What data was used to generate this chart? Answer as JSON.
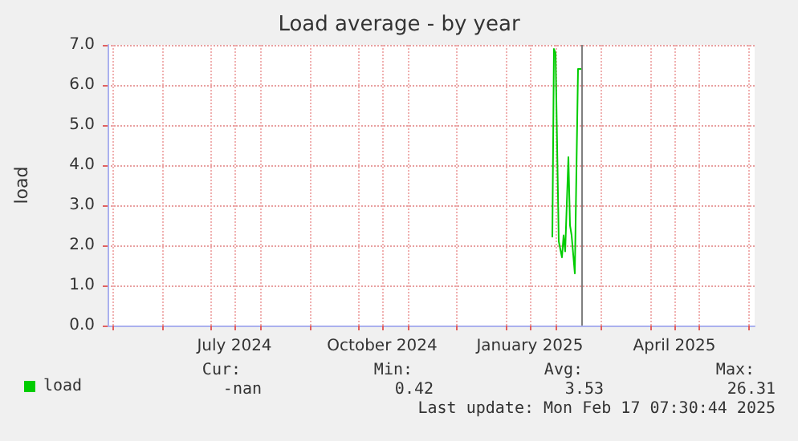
{
  "chart_data": {
    "type": "line",
    "title": "Load average - by year",
    "ylabel": "load",
    "x": [
      "2025-01-30",
      "2025-01-31",
      "2025-02-01",
      "2025-02-03",
      "2025-02-05",
      "2025-02-06",
      "2025-02-07",
      "2025-02-09",
      "2025-02-10",
      "2025-02-11",
      "2025-02-13",
      "2025-02-15",
      "2025-02-17"
    ],
    "series": [
      {
        "name": "load",
        "color": "#00cc00",
        "values": [
          2.2,
          6.9,
          6.8,
          2.1,
          1.7,
          2.25,
          1.85,
          4.2,
          2.5,
          2.25,
          1.3,
          6.4,
          6.4
        ]
      }
    ],
    "xlim": [
      "2024-04-28",
      "2025-06-05"
    ],
    "xticks": [
      {
        "value": "2024-05-01",
        "label": null
      },
      {
        "value": "2024-06-01",
        "label": null
      },
      {
        "value": "2024-07-01",
        "label": null
      },
      {
        "value": "2024-07-16",
        "label": "July 2024"
      },
      {
        "value": "2024-08-01",
        "label": null
      },
      {
        "value": "2024-09-01",
        "label": null
      },
      {
        "value": "2024-10-01",
        "label": null
      },
      {
        "value": "2024-10-16",
        "label": "October 2024"
      },
      {
        "value": "2024-11-01",
        "label": null
      },
      {
        "value": "2024-12-01",
        "label": null
      },
      {
        "value": "2025-01-01",
        "label": null
      },
      {
        "value": "2025-01-16",
        "label": "January 2025"
      },
      {
        "value": "2025-02-01",
        "label": null
      },
      {
        "value": "2025-03-01",
        "label": null
      },
      {
        "value": "2025-04-01",
        "label": null
      },
      {
        "value": "2025-04-16",
        "label": "April 2025"
      },
      {
        "value": "2025-05-01",
        "label": null
      },
      {
        "value": "2025-06-01",
        "label": null
      }
    ],
    "ylim": [
      0,
      7
    ],
    "yticks": [
      {
        "value": 0,
        "label": "0.0"
      },
      {
        "value": 1,
        "label": "1.0"
      },
      {
        "value": 2,
        "label": "2.0"
      },
      {
        "value": 3,
        "label": "3.0"
      },
      {
        "value": 4,
        "label": "4.0"
      },
      {
        "value": 5,
        "label": "5.0"
      },
      {
        "value": 6,
        "label": "6.0"
      },
      {
        "value": 7,
        "label": "7.0"
      }
    ],
    "grid": true,
    "legend": "bottom left",
    "marker": "none",
    "line_style": "solid",
    "ref_lines": [
      {
        "axis": "x",
        "value": "2025-02-17",
        "color": "#808080"
      }
    ],
    "annotations": [
      "Cur:",
      "Min:",
      "Avg:",
      "Max:",
      "-nan",
      "0.42",
      "3.53",
      "26.31",
      "Last update: Mon Feb 17 07:30:44 2025"
    ]
  }
}
